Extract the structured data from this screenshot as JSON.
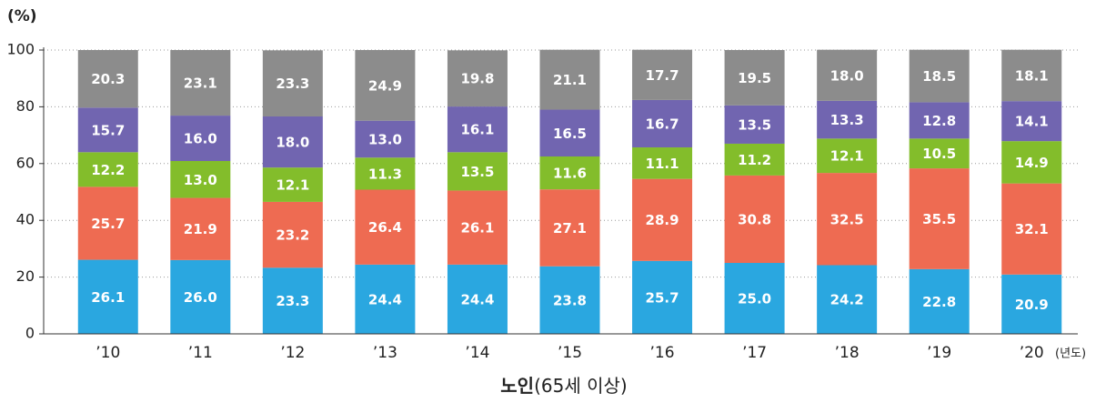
{
  "chart_data": {
    "type": "stacked_bar",
    "y_label": "(%)",
    "x_unit": "(년도)",
    "x_title": "노인",
    "x_subtitle": "(65세 이상)",
    "categories": [
      "’10",
      "’11",
      "’12",
      "’13",
      "’14",
      "’15",
      "’16",
      "’17",
      "’18",
      "’19",
      "’20"
    ],
    "series": [
      {
        "color": "#2aa7e0",
        "values": [
          26.1,
          26.0,
          23.3,
          24.4,
          24.4,
          23.8,
          25.7,
          25.0,
          24.2,
          22.8,
          20.9
        ],
        "value_labels": [
          "26.1",
          "26.0",
          "23.3",
          "24.4",
          "24.4",
          "23.8",
          "25.7",
          "25.0",
          "24.2",
          "22.8",
          "20.9"
        ]
      },
      {
        "color": "#ee6b52",
        "values": [
          25.7,
          21.9,
          23.2,
          26.4,
          26.1,
          27.1,
          28.9,
          30.8,
          32.5,
          35.5,
          32.1
        ],
        "value_labels": [
          "25.7",
          "21.9",
          "23.2",
          "26.4",
          "26.1",
          "27.1",
          "28.9",
          "30.8",
          "32.5",
          "35.5",
          "32.1"
        ]
      },
      {
        "color": "#83bd2b",
        "values": [
          12.2,
          13.0,
          12.1,
          11.3,
          13.5,
          11.6,
          11.1,
          11.2,
          12.1,
          10.5,
          14.9
        ],
        "value_labels": [
          "12.2",
          "13.0",
          "12.1",
          "11.3",
          "13.5",
          "11.6",
          "11.1",
          "11.2",
          "12.1",
          "10.5",
          "14.9"
        ]
      },
      {
        "color": "#7165b0",
        "values": [
          15.7,
          16.0,
          18.0,
          13.0,
          16.1,
          16.5,
          16.7,
          13.5,
          13.3,
          12.8,
          14.1
        ],
        "value_labels": [
          "15.7",
          "16.0",
          "18.0",
          "13.0",
          "16.1",
          "16.5",
          "16.7",
          "13.5",
          "13.3",
          "12.8",
          "14.1"
        ]
      },
      {
        "color": "#8c8c8c",
        "values": [
          20.3,
          23.1,
          23.3,
          24.9,
          19.8,
          21.1,
          17.7,
          19.5,
          18.0,
          18.5,
          18.1
        ],
        "value_labels": [
          "20.3",
          "23.1",
          "23.3",
          "24.9",
          "19.8",
          "21.1",
          "17.7",
          "19.5",
          "18.0",
          "18.5",
          "18.1"
        ]
      }
    ],
    "ylim": [
      0,
      100
    ],
    "yticks": [
      0,
      20,
      40,
      60,
      80,
      100
    ],
    "grid": true
  }
}
